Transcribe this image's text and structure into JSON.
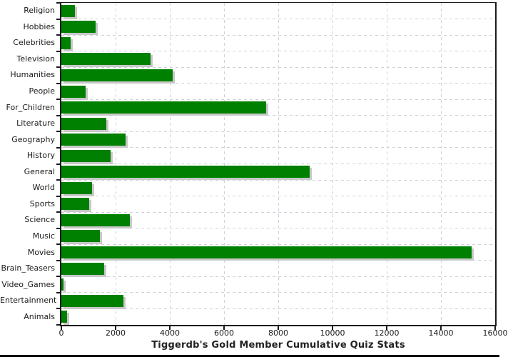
{
  "title": "Tiggerdb's Gold Member Cumulative Quiz Stats",
  "colors": {
    "bar": "#008000",
    "bar_shadow": "#c8c8c8",
    "grid": "#ccd3da",
    "axis": "#1a1a1a",
    "text": "#1a1a1a",
    "title_text": "#222222",
    "bottom_border": "#000000"
  },
  "chart_data": {
    "type": "bar",
    "orientation": "horizontal",
    "title": "Tiggerdb's Gold Member Cumulative Quiz Stats",
    "xlabel": "",
    "ylabel": "",
    "xlim": [
      0,
      16000
    ],
    "grid": true,
    "legend": "none",
    "x_ticks": [
      0,
      2000,
      4000,
      6000,
      8000,
      10000,
      12000,
      14000,
      16000
    ],
    "x_tick_labels": [
      "0",
      "2000",
      "4000",
      "6000",
      "8000",
      "10000",
      "12000",
      "14000",
      "16000"
    ],
    "categories": [
      "Religion",
      "Hobbies",
      "Celebrities",
      "Television",
      "Humanities",
      "People",
      "For_Children",
      "Literature",
      "Geography",
      "History",
      "General",
      "World",
      "Sports",
      "Science",
      "Music",
      "Movies",
      "Brain_Teasers",
      "Video_Games",
      "Entertainment",
      "Animals"
    ],
    "values": [
      500,
      1270,
      340,
      3300,
      4110,
      900,
      7540,
      1660,
      2380,
      1820,
      9150,
      1130,
      1030,
      2530,
      1420,
      15130,
      1580,
      80,
      2290,
      210
    ]
  }
}
